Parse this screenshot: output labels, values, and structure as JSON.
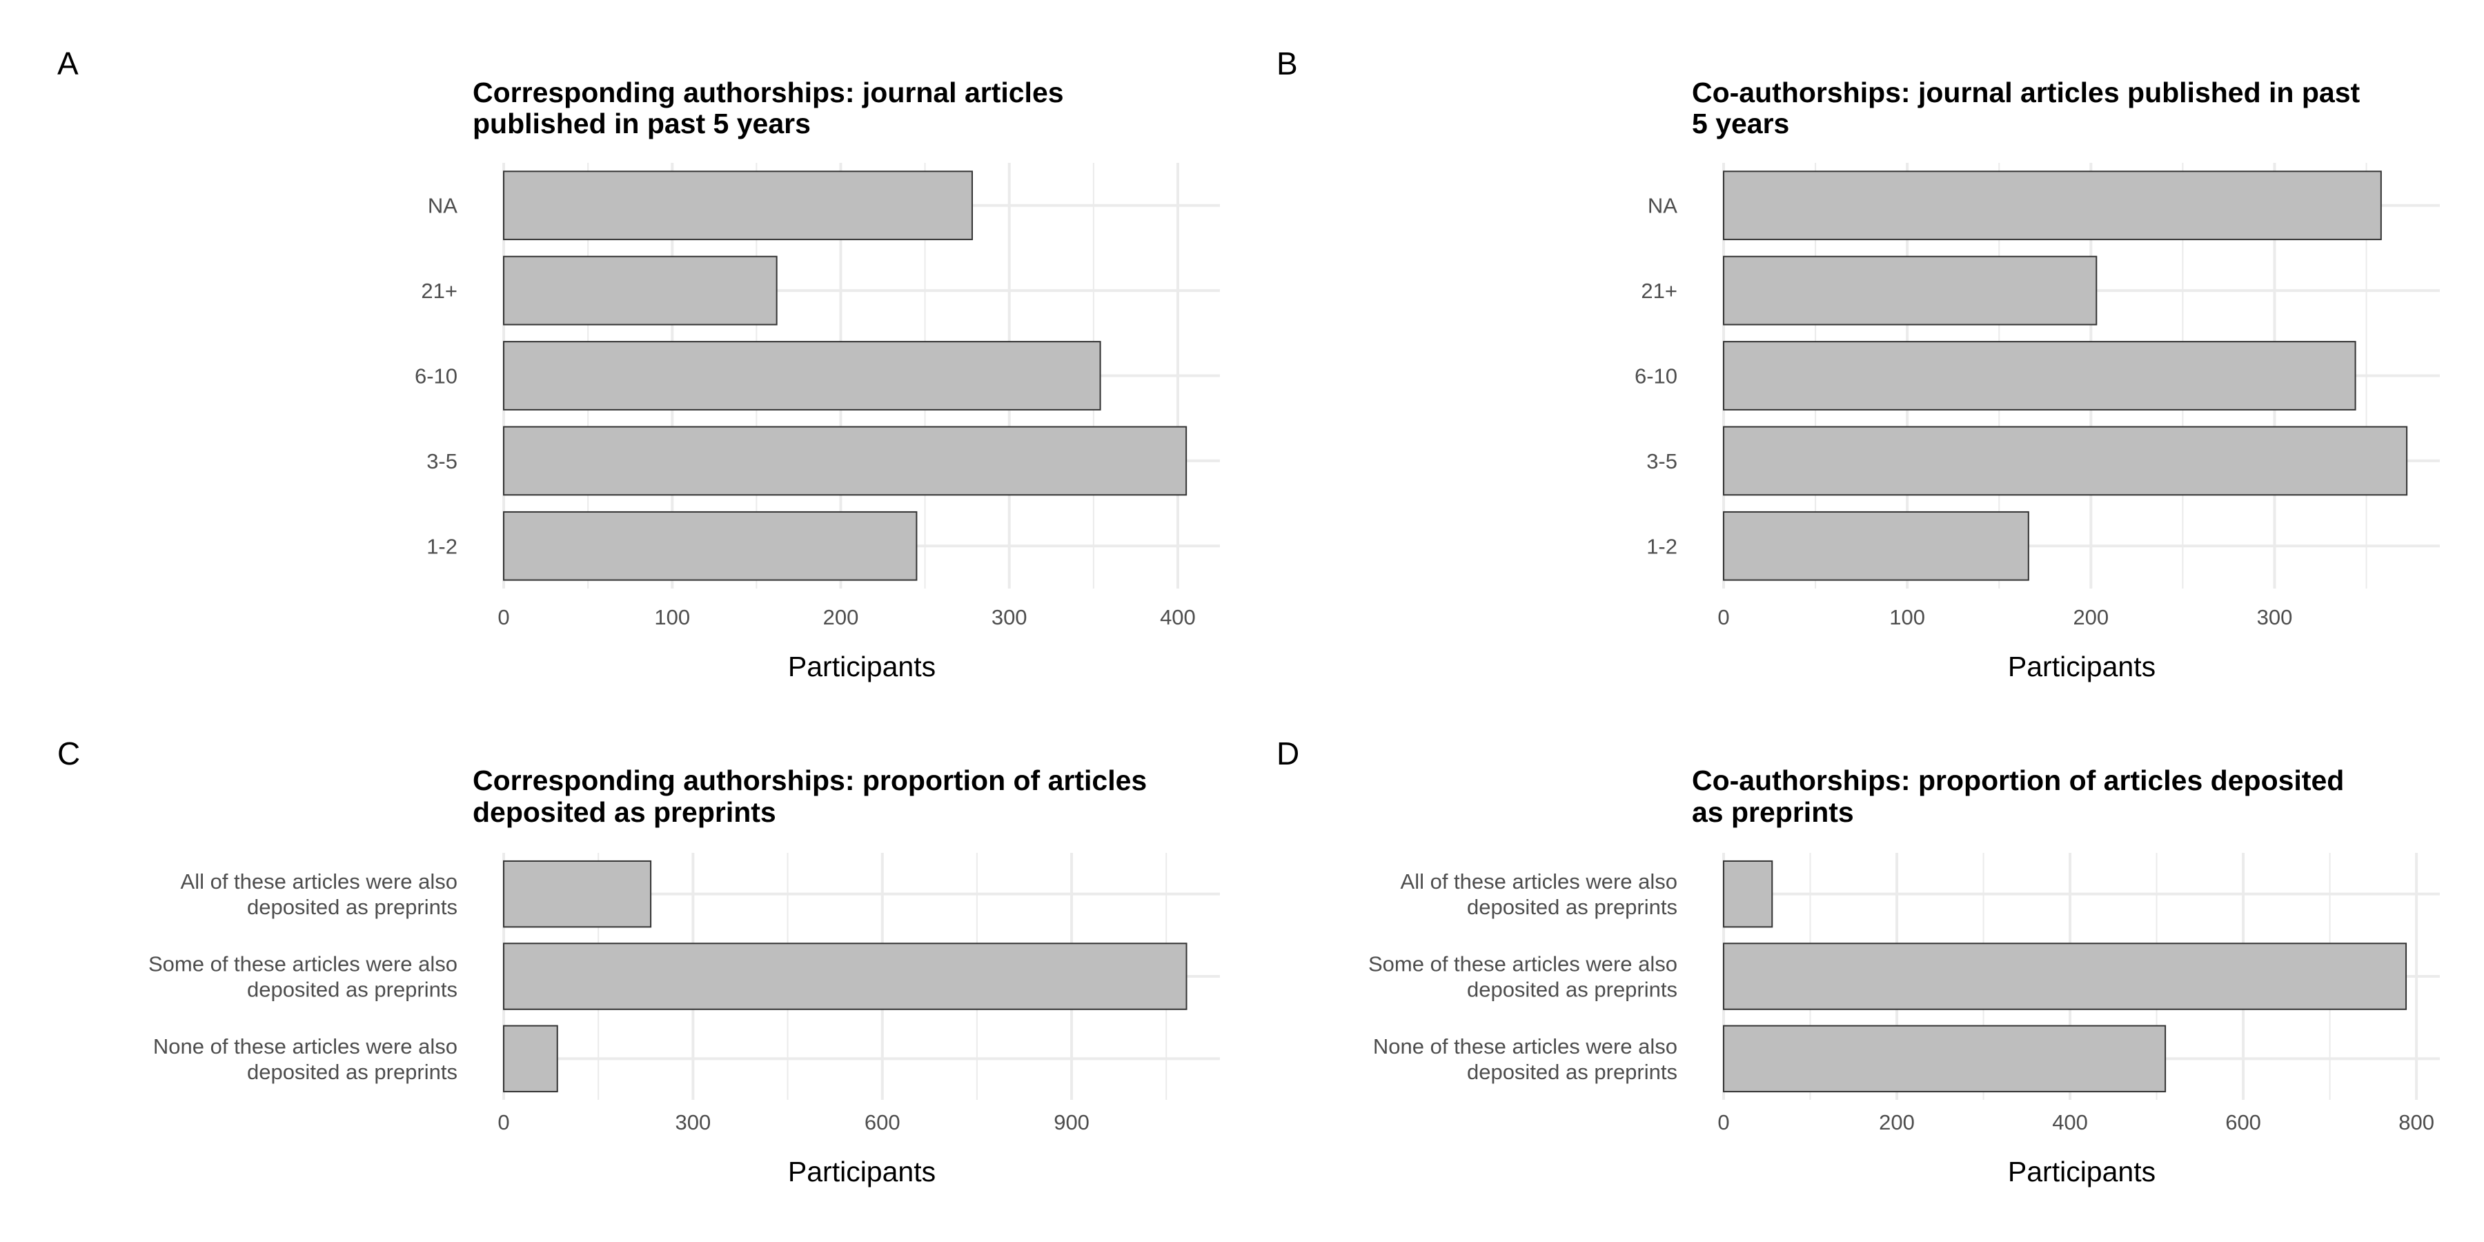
{
  "chart_data": [
    {
      "panel": "A",
      "type": "bar",
      "orientation": "horizontal",
      "title": "Corresponding authorships: journal articles published in past 5 years",
      "title_lines": [
        "Corresponding authorships: journal articles",
        "published in past 5 years"
      ],
      "xlabel": "Participants",
      "ylabel": "",
      "categories": [
        [
          "1-2"
        ],
        [
          "3-5"
        ],
        [
          "6-10"
        ],
        [
          "21+"
        ],
        [
          "NA"
        ]
      ],
      "values": [
        245,
        405,
        354,
        162,
        278
      ],
      "xlim": [
        0,
        425
      ],
      "xticks": [
        0,
        100,
        200,
        300,
        400
      ],
      "grid": true,
      "legend": "none"
    },
    {
      "panel": "B",
      "type": "bar",
      "orientation": "horizontal",
      "title": "Co-authorships: journal articles published in past 5 years",
      "title_lines": [
        "Co-authorships: journal articles published in past",
        "5 years"
      ],
      "xlabel": "Participants",
      "ylabel": "",
      "categories": [
        [
          "1-2"
        ],
        [
          "3-5"
        ],
        [
          "6-10"
        ],
        [
          "21+"
        ],
        [
          "NA"
        ]
      ],
      "values": [
        166,
        372,
        344,
        203,
        358
      ],
      "xlim": [
        0,
        390
      ],
      "xticks": [
        0,
        100,
        200,
        300
      ],
      "grid": true,
      "legend": "none"
    },
    {
      "panel": "C",
      "type": "bar",
      "orientation": "horizontal",
      "title": "Corresponding authorships: proportion of articles deposited as preprints",
      "title_lines": [
        "Corresponding authorships: proportion of articles",
        "deposited as preprints"
      ],
      "xlabel": "Participants",
      "ylabel": "",
      "categories": [
        [
          "None of these articles were also",
          "deposited as preprints"
        ],
        [
          "Some of these articles were also",
          "deposited as preprints"
        ],
        [
          "All of these articles were also",
          "deposited as preprints"
        ]
      ],
      "values": [
        85,
        1082,
        233
      ],
      "xlim": [
        0,
        1135
      ],
      "xticks": [
        0,
        300,
        600,
        900
      ],
      "grid": true,
      "legend": "none"
    },
    {
      "panel": "D",
      "type": "bar",
      "orientation": "horizontal",
      "title": "Co-authorships: proportion of articles deposited as preprints",
      "title_lines": [
        "Co-authorships: proportion of articles deposited",
        "as preprints"
      ],
      "xlabel": "Participants",
      "ylabel": "",
      "categories": [
        [
          "None of these articles were also",
          "deposited as preprints"
        ],
        [
          "Some of these articles were also",
          "deposited as preprints"
        ],
        [
          "All of these articles were also",
          "deposited as preprints"
        ]
      ],
      "values": [
        510,
        788,
        56
      ],
      "xlim": [
        0,
        827
      ],
      "xticks": [
        0,
        200,
        400,
        600,
        800
      ],
      "grid": true,
      "legend": "none"
    }
  ],
  "style": {
    "bar_fill": "#bebebe",
    "bar_stroke": "#333333",
    "grid_color": "#ebebeb",
    "tick_text_color": "#4d4d4d",
    "text_color": "#000000",
    "background": "#ffffff"
  }
}
